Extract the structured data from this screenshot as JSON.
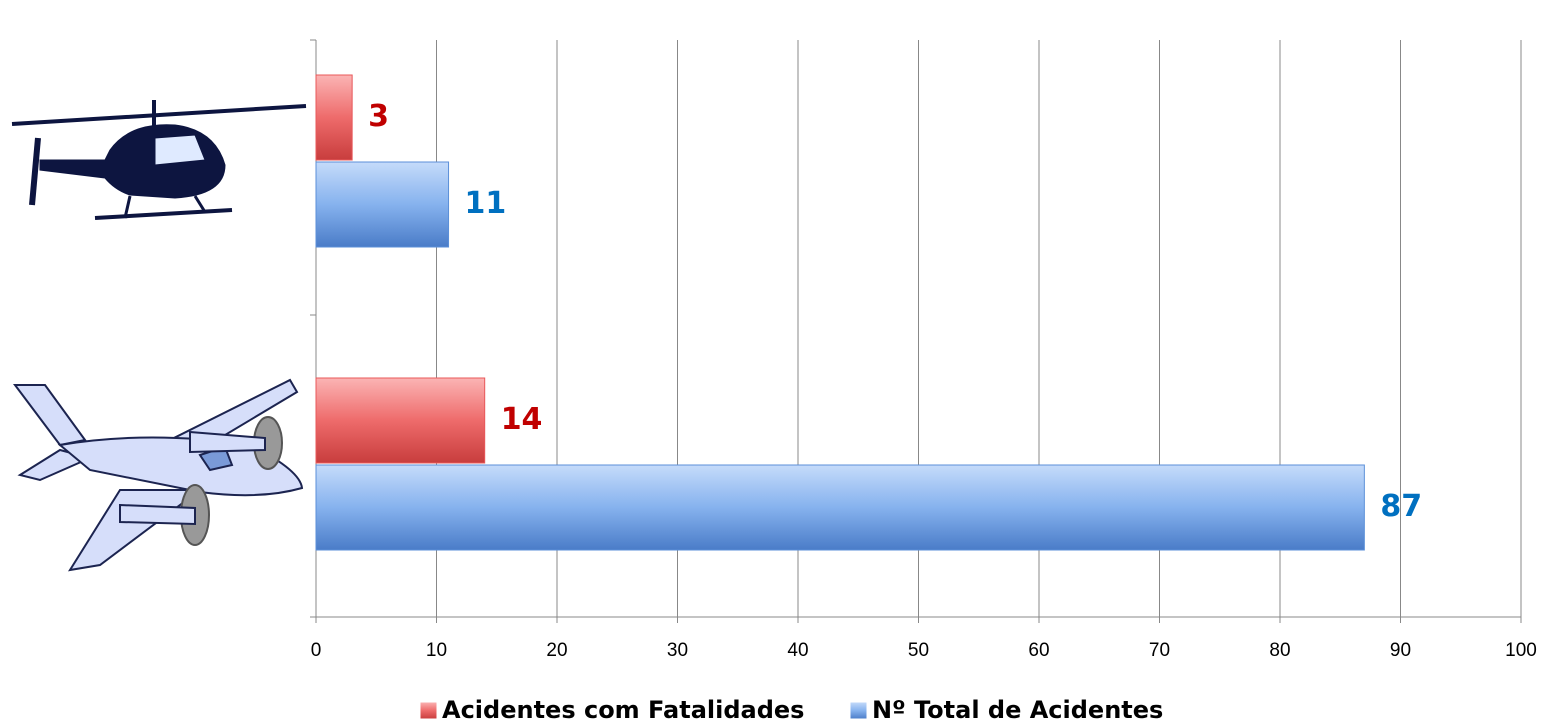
{
  "chart_data": {
    "type": "barh",
    "categories": [
      null,
      null
    ],
    "series": [
      {
        "name": "Acidentes com Fatalidades",
        "color": "#e8585a",
        "label_color": "#c00000",
        "values": [
          3,
          14
        ]
      },
      {
        "name": "Nº Total de Acidentes",
        "color": "#5b8fd8",
        "label_color": "#0070c0",
        "values": [
          11,
          87
        ]
      }
    ],
    "xlim": [
      0,
      100
    ],
    "xticks": [
      0,
      10,
      20,
      30,
      40,
      50,
      60,
      70,
      80,
      90,
      100
    ],
    "grid": true,
    "legend": "bottom"
  }
}
